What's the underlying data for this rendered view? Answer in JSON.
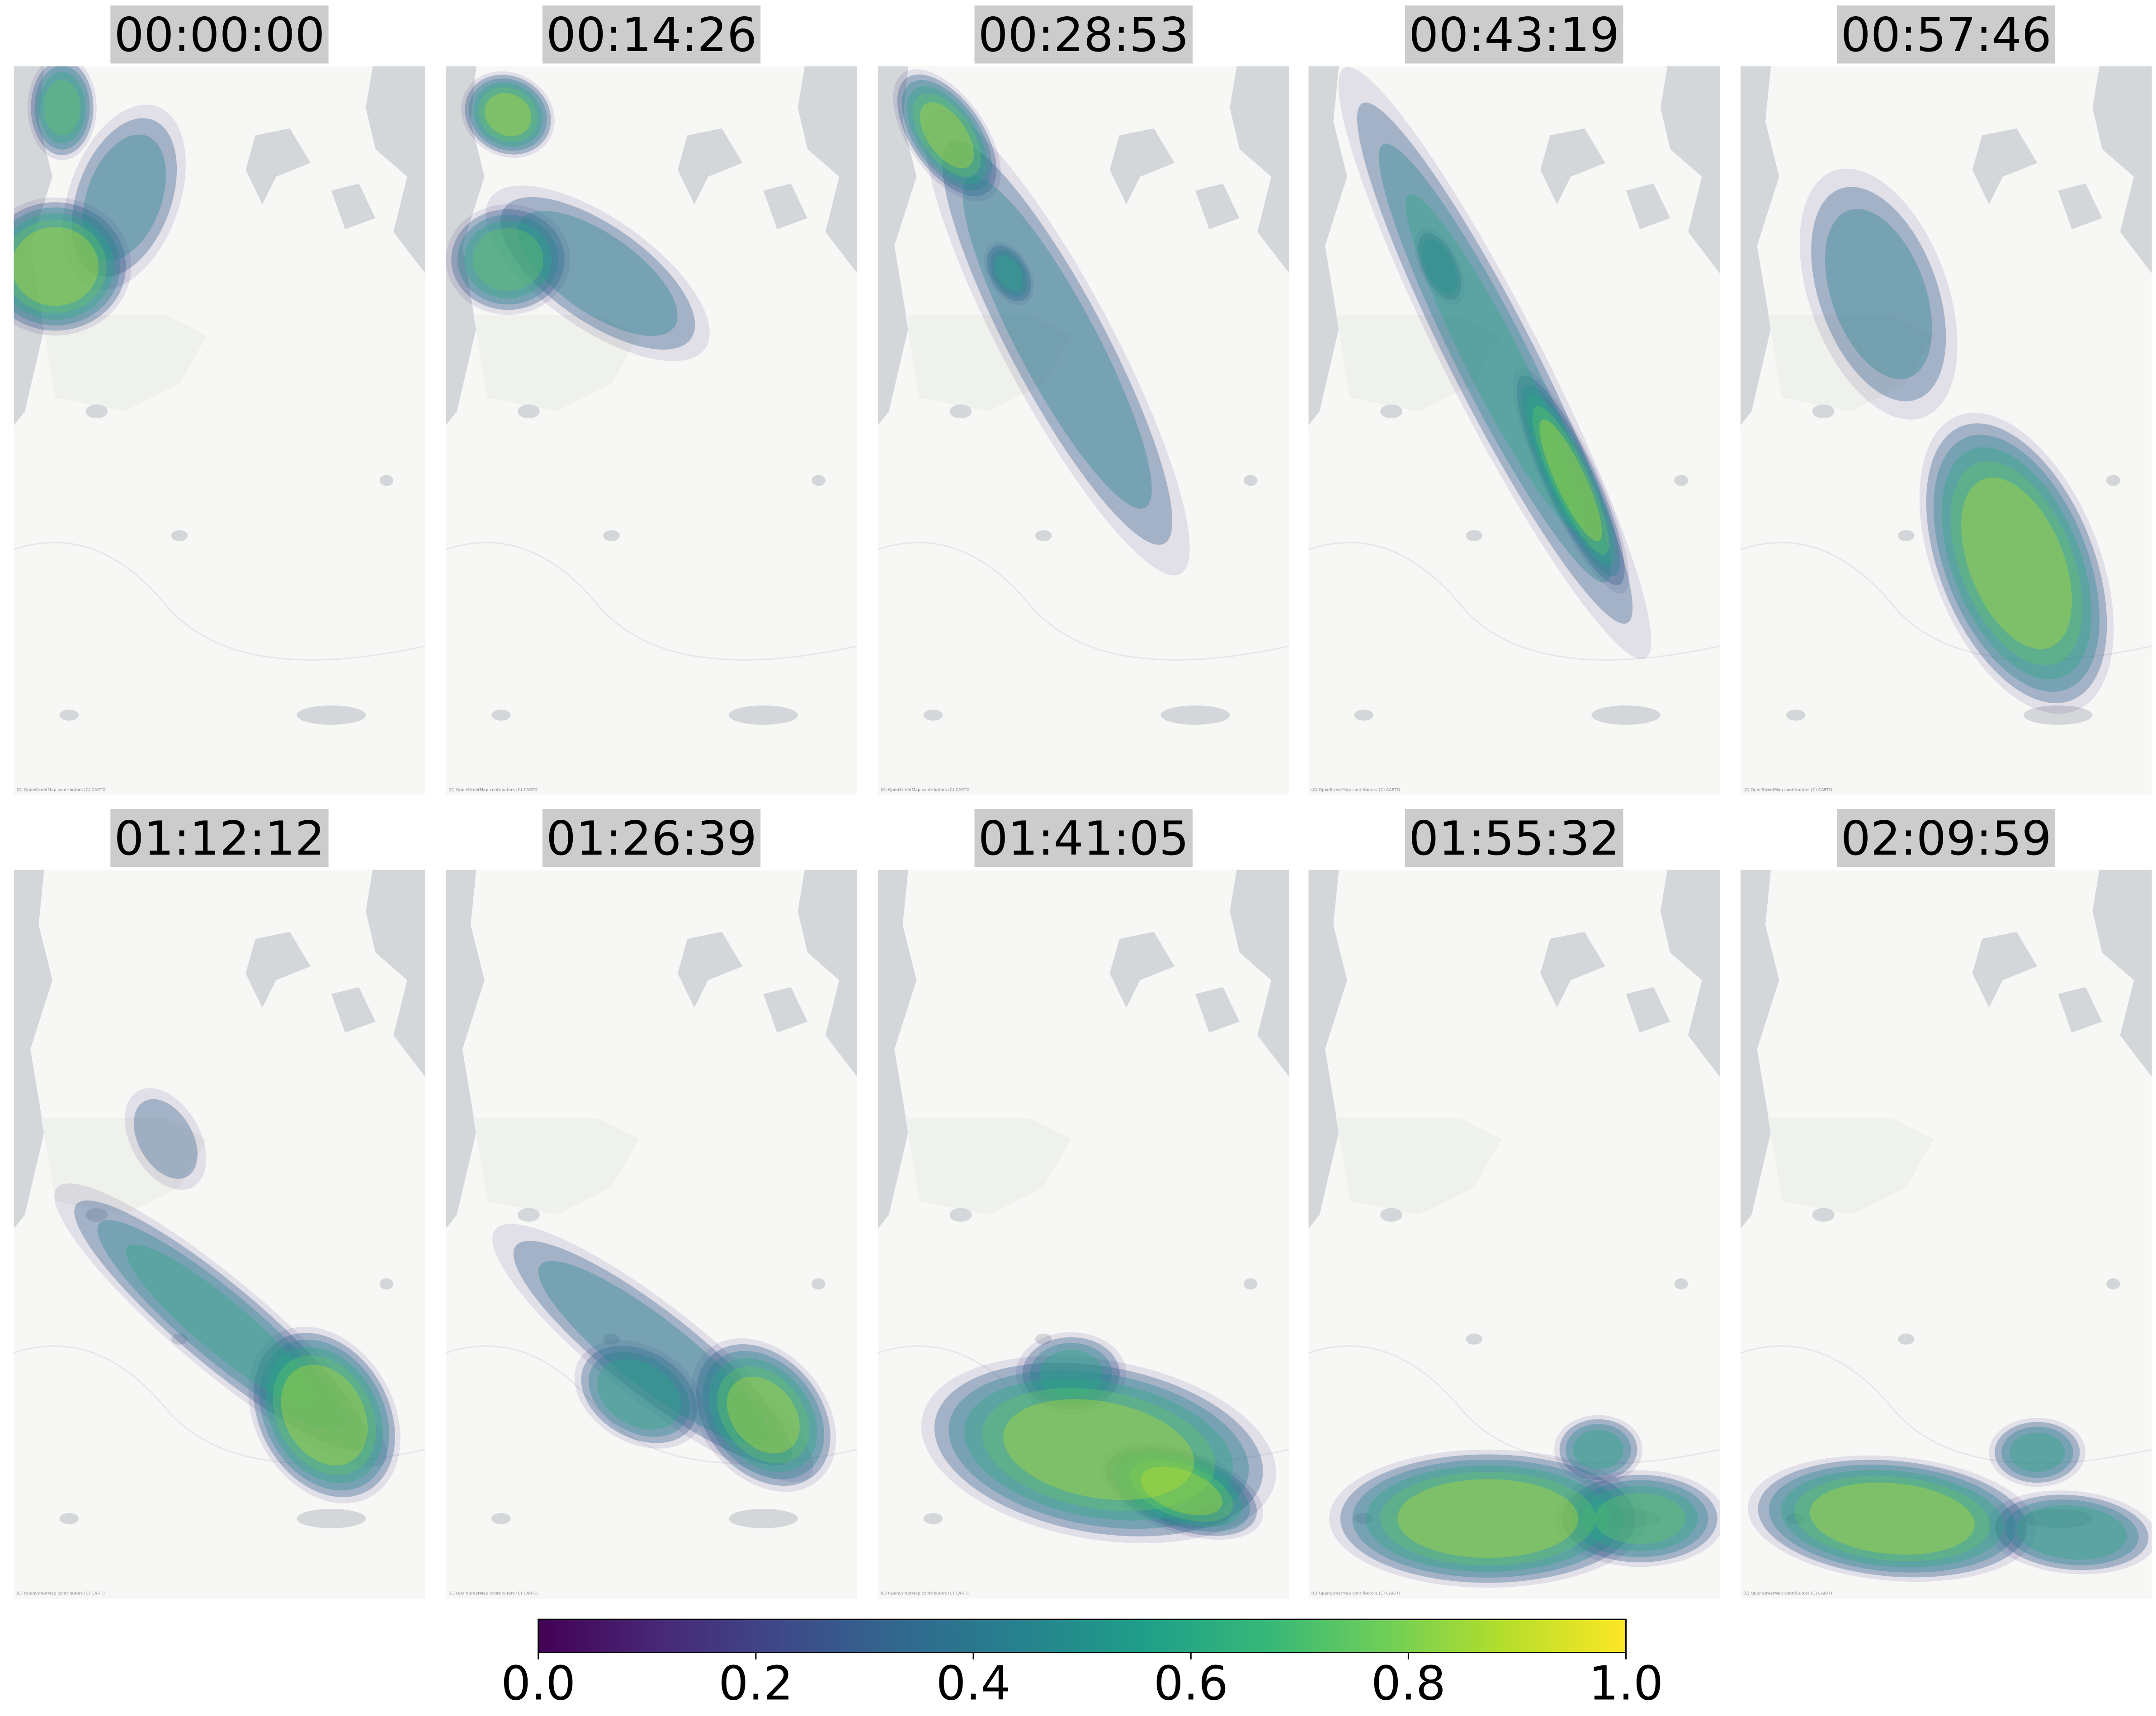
{
  "chart_data": {
    "type": "kde-small-multiples",
    "panel_titles": [
      "00:00:00",
      "00:14:26",
      "00:28:53",
      "00:43:19",
      "00:57:46",
      "01:12:12",
      "01:26:39",
      "01:41:05",
      "01:55:32",
      "02:09:59"
    ],
    "attribution": "(C) OpenStreetMap contributors (C) CARTO",
    "colorbar": {
      "colormap": "viridis",
      "lim": [
        0,
        1
      ],
      "ticks": [
        {
          "value": 0,
          "label": "0.0"
        },
        {
          "value": 0.2,
          "label": "0.2"
        },
        {
          "value": 0.4,
          "label": "0.4"
        },
        {
          "value": 0.6,
          "label": "0.6"
        },
        {
          "value": 0.8,
          "label": "0.8"
        },
        {
          "value": 1,
          "label": "1.0"
        }
      ]
    }
  }
}
